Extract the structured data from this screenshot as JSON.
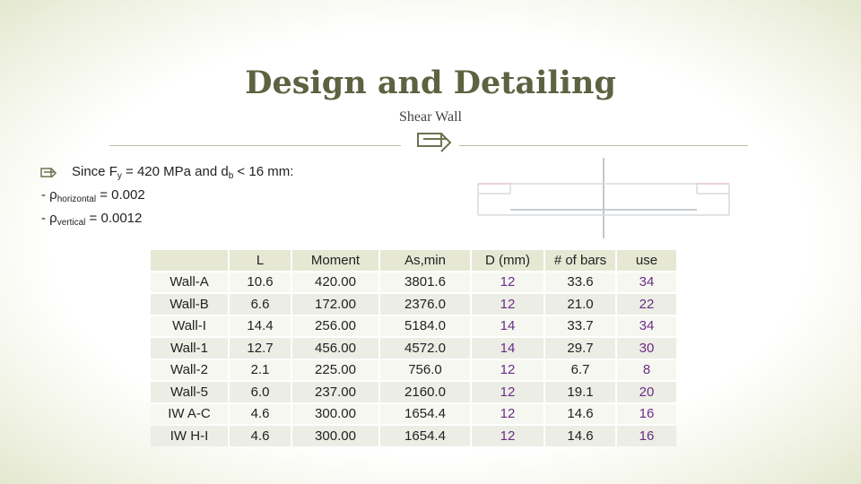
{
  "slide": {
    "title": "Design and Detailing",
    "subtitle": "Shear Wall"
  },
  "bullet": {
    "prefix": "Since F",
    "sub_y": "y",
    "mid": " = 420 MPa and d",
    "sub_b": "b",
    "suffix": " < 16 mm:"
  },
  "rho_h": {
    "prefix": "- ρ",
    "sub": "horizontal",
    "value": " = 0.002"
  },
  "rho_v": {
    "prefix": "- ρ",
    "sub": "vertical",
    "value": " = 0.0012"
  },
  "table": {
    "headers": [
      "",
      "L",
      "Moment",
      "As,min",
      "D (mm)",
      "# of bars",
      "use"
    ],
    "rows": [
      [
        "Wall-A",
        "10.6",
        "420.00",
        "3801.6",
        "12",
        "33.6",
        "34"
      ],
      [
        "Wall-B",
        "6.6",
        "172.00",
        "2376.0",
        "12",
        "21.0",
        "22"
      ],
      [
        "Wall-I",
        "14.4",
        "256.00",
        "5184.0",
        "14",
        "33.7",
        "34"
      ],
      [
        "Wall-1",
        "12.7",
        "456.00",
        "4572.0",
        "14",
        "29.7",
        "30"
      ],
      [
        "Wall-2",
        "2.1",
        "225.00",
        "756.0",
        "12",
        "6.7",
        "8"
      ],
      [
        "Wall-5",
        "6.0",
        "237.00",
        "2160.0",
        "12",
        "19.1",
        "20"
      ],
      [
        "IW A-C",
        "4.6",
        "300.00",
        "1654.4",
        "12",
        "14.6",
        "16"
      ],
      [
        "IW H-I",
        "4.6",
        "300.00",
        "1654.4",
        "12",
        "14.6",
        "16"
      ]
    ]
  },
  "colors": {
    "title": "#5b6341",
    "accent_purple": "#6a2d86",
    "header_bg": "#e6e8d4"
  },
  "icons": {
    "ornament": "scroll-ornament-icon",
    "bullet": "scroll-bullet-icon"
  }
}
